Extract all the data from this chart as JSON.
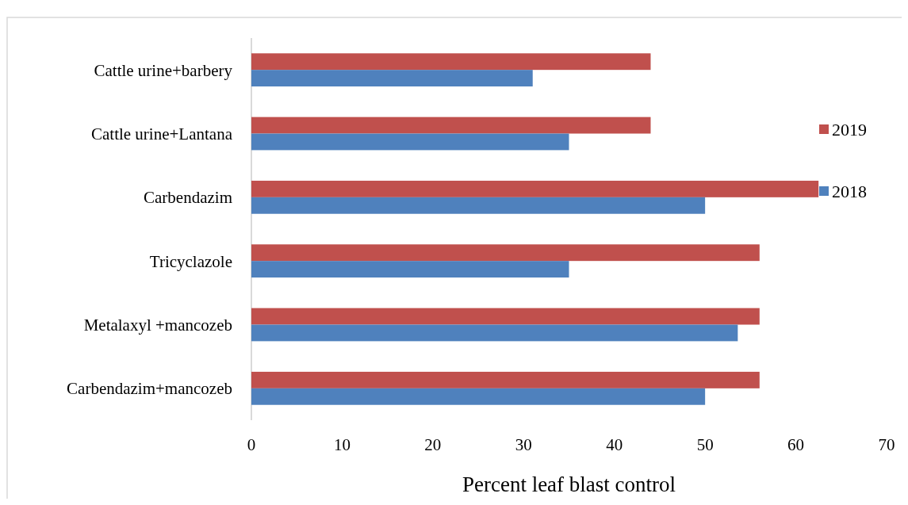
{
  "chart_data": {
    "type": "bar",
    "orientation": "horizontal",
    "xlabel": "Percent leaf blast control",
    "categories": [
      "Cattle urine+barbery",
      "Cattle urine+Lantana",
      "Carbendazim",
      "Tricyclazole",
      "Metalaxyl +mancozeb",
      "Carbendazim+mancozeb"
    ],
    "series": [
      {
        "name": "2019",
        "color": "#c0504d",
        "values": [
          44,
          44,
          62.5,
          56,
          56,
          56
        ]
      },
      {
        "name": "2018",
        "color": "#4f81bd",
        "values": [
          31,
          35,
          50,
          35,
          53.6,
          50
        ]
      }
    ],
    "xlim": [
      0,
      70
    ],
    "xticks": [
      0,
      10,
      20,
      30,
      40,
      50,
      60,
      70
    ],
    "grid": false,
    "legend": "right"
  }
}
